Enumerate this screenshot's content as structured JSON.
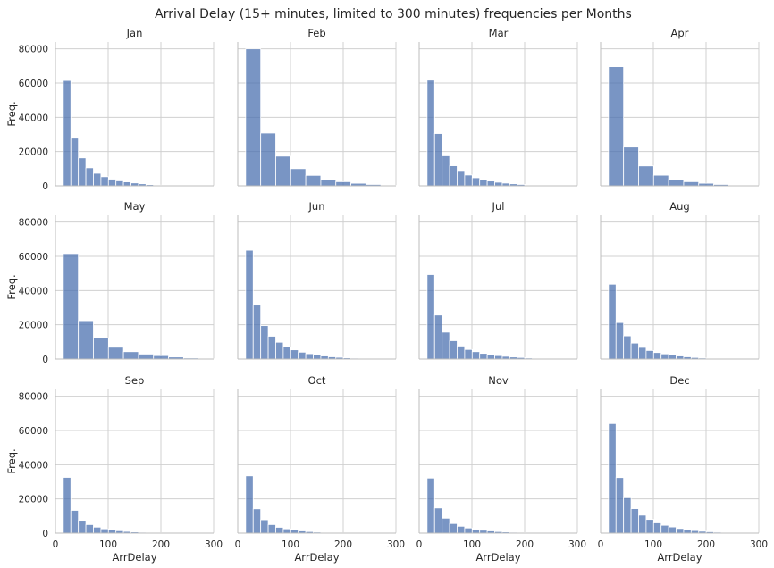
{
  "chart_data": {
    "type": "bar",
    "title": "Arrival Delay (15+ minutes, limited to 300 minutes) frequencies per Months",
    "xlabel": "ArrDelay",
    "ylabel": "Freq.",
    "xlim": [
      0,
      300
    ],
    "ylim": [
      0,
      84000
    ],
    "xticks": [
      0,
      100,
      200,
      300
    ],
    "yticks": [
      0,
      20000,
      40000,
      60000,
      80000
    ],
    "grid": true,
    "panels": [
      {
        "name": "Jan",
        "bin_width": 14.25,
        "start": 15,
        "values": [
          61500,
          27800,
          16300,
          10500,
          7300,
          5300,
          3900,
          2900,
          2300,
          1700,
          1200,
          700,
          400,
          250,
          180,
          120,
          80,
          50,
          30,
          20
        ]
      },
      {
        "name": "Feb",
        "bin_width": 28.5,
        "start": 15,
        "values": [
          80000,
          30800,
          17300,
          10000,
          6100,
          3700,
          2400,
          1500,
          800,
          300
        ]
      },
      {
        "name": "Mar",
        "bin_width": 14.25,
        "start": 15,
        "values": [
          61700,
          30500,
          17500,
          11700,
          8400,
          6300,
          4700,
          3500,
          2800,
          2100,
          1600,
          1200,
          800,
          400,
          250,
          150,
          90,
          50,
          30,
          20
        ]
      },
      {
        "name": "Apr",
        "bin_width": 28.5,
        "start": 15,
        "values": [
          69600,
          22600,
          11600,
          6200,
          3800,
          2400,
          1500,
          800,
          300,
          100
        ]
      },
      {
        "name": "May",
        "bin_width": 28.5,
        "start": 15,
        "values": [
          61600,
          22400,
          12400,
          6900,
          4300,
          2900,
          2000,
          1200,
          600,
          200
        ]
      },
      {
        "name": "Jun",
        "bin_width": 14.25,
        "start": 15,
        "values": [
          63600,
          31500,
          19500,
          13300,
          9800,
          7000,
          5400,
          4000,
          3100,
          2300,
          1800,
          1300,
          1000,
          700,
          500,
          350,
          200,
          100,
          60,
          30
        ]
      },
      {
        "name": "Jul",
        "bin_width": 14.25,
        "start": 15,
        "values": [
          49300,
          25700,
          15700,
          10700,
          7600,
          5600,
          4300,
          3300,
          2500,
          2000,
          1600,
          1200,
          900,
          600,
          400,
          250,
          150,
          80,
          40,
          20
        ]
      },
      {
        "name": "Aug",
        "bin_width": 14.25,
        "start": 15,
        "values": [
          43700,
          21300,
          13500,
          9300,
          6800,
          5000,
          3800,
          3000,
          2300,
          1800,
          1300,
          900,
          600,
          400,
          250,
          150,
          90,
          50,
          30,
          20
        ]
      },
      {
        "name": "Sep",
        "bin_width": 14.25,
        "start": 15,
        "values": [
          32600,
          13300,
          7500,
          5000,
          3500,
          2500,
          1900,
          1400,
          1000,
          700,
          500,
          350,
          250,
          150,
          100,
          60,
          40,
          20,
          10,
          5
        ]
      },
      {
        "name": "Oct",
        "bin_width": 14.25,
        "start": 15,
        "values": [
          33500,
          14200,
          7800,
          5000,
          3400,
          2500,
          1800,
          1300,
          900,
          600,
          400,
          300,
          200,
          120,
          80,
          50,
          30,
          20,
          10,
          5
        ]
      },
      {
        "name": "Nov",
        "bin_width": 14.25,
        "start": 15,
        "values": [
          32200,
          14700,
          8700,
          5600,
          4000,
          3000,
          2300,
          1700,
          1300,
          900,
          700,
          500,
          350,
          250,
          150,
          100,
          60,
          40,
          20,
          10
        ]
      },
      {
        "name": "Dec",
        "bin_width": 14.25,
        "start": 15,
        "values": [
          64000,
          32500,
          20700,
          14300,
          10500,
          8000,
          6000,
          4600,
          3600,
          2700,
          2000,
          1500,
          1100,
          800,
          550,
          350,
          200,
          120,
          60,
          30
        ]
      }
    ]
  }
}
